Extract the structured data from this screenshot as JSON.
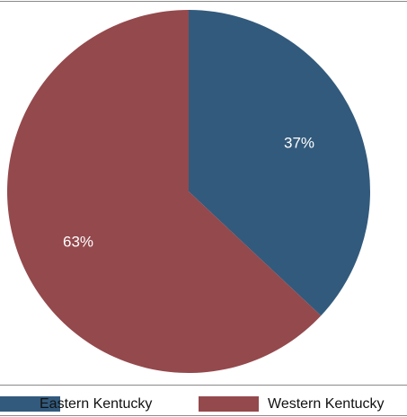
{
  "chart_data": {
    "type": "pie",
    "categories": [
      "Eastern Kentucky",
      "Western Kentucky"
    ],
    "values": [
      37,
      63
    ],
    "labels": [
      "37%",
      "63%"
    ],
    "colors": [
      "#325A7C",
      "#94494D"
    ],
    "start_angle": "12 o'clock, clockwise",
    "legend": {
      "placement": "bottom",
      "entries": [
        "Eastern Kentucky",
        "Western Kentucky"
      ]
    }
  }
}
